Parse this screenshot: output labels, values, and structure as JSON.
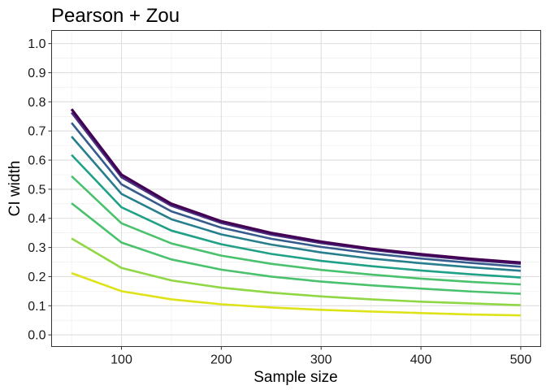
{
  "chart_data": {
    "type": "line",
    "title": "Pearson + Zou",
    "xlabel": "Sample size",
    "ylabel": "CI width",
    "xlim": [
      30,
      520
    ],
    "ylim": [
      -0.04,
      1.045
    ],
    "x_ticks": [
      100,
      200,
      300,
      400,
      500
    ],
    "y_ticks": [
      0.0,
      0.1,
      0.2,
      0.3,
      0.4,
      0.5,
      0.6,
      0.7,
      0.8,
      0.9,
      1.0
    ],
    "x_tick_labels": [
      "100",
      "200",
      "300",
      "400",
      "500"
    ],
    "y_tick_labels": [
      "0.0",
      "0.1",
      "0.2",
      "0.3",
      "0.4",
      "0.5",
      "0.6",
      "0.7",
      "0.8",
      "0.9",
      "1.0"
    ],
    "grid": true,
    "legend": "none",
    "x": [
      50,
      100,
      150,
      200,
      250,
      300,
      350,
      400,
      450,
      500
    ],
    "series": [
      {
        "color": "#440154",
        "values": [
          0.775,
          0.55,
          0.45,
          0.39,
          0.35,
          0.32,
          0.296,
          0.277,
          0.261,
          0.248
        ]
      },
      {
        "color": "#46327e",
        "values": [
          0.763,
          0.541,
          0.443,
          0.384,
          0.344,
          0.315,
          0.292,
          0.273,
          0.257,
          0.244
        ]
      },
      {
        "color": "#365c8d",
        "values": [
          0.728,
          0.517,
          0.424,
          0.368,
          0.33,
          0.302,
          0.28,
          0.262,
          0.247,
          0.234
        ]
      },
      {
        "color": "#277f8e",
        "values": [
          0.681,
          0.484,
          0.397,
          0.345,
          0.31,
          0.283,
          0.262,
          0.246,
          0.232,
          0.22
        ]
      },
      {
        "color": "#1fa187",
        "values": [
          0.618,
          0.438,
          0.358,
          0.311,
          0.278,
          0.254,
          0.236,
          0.221,
          0.208,
          0.197
        ]
      },
      {
        "color": "#4ac16d",
        "values": [
          0.545,
          0.383,
          0.314,
          0.272,
          0.244,
          0.223,
          0.207,
          0.193,
          0.182,
          0.173
        ]
      },
      {
        "color": "#4ac16d",
        "values": [
          0.452,
          0.317,
          0.259,
          0.224,
          0.2,
          0.183,
          0.17,
          0.159,
          0.149,
          0.141
        ]
      },
      {
        "color": "#8fd744",
        "values": [
          0.331,
          0.23,
          0.187,
          0.162,
          0.145,
          0.132,
          0.122,
          0.114,
          0.108,
          0.102
        ]
      },
      {
        "color": "#dde318",
        "values": [
          0.212,
          0.15,
          0.122,
          0.105,
          0.094,
          0.086,
          0.08,
          0.075,
          0.07,
          0.067
        ]
      }
    ]
  }
}
